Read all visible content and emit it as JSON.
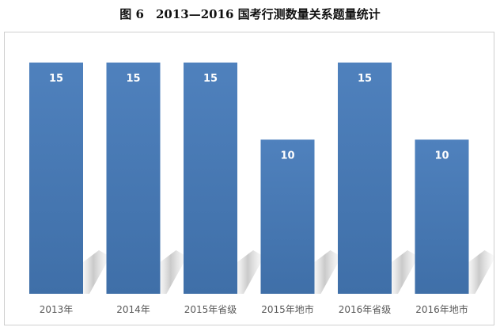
{
  "chart_data": {
    "type": "bar",
    "title": "图 6　2013—2016 国考行测数量关系题量统计",
    "categories": [
      "2013年",
      "2014年",
      "2015年省级",
      "2015年地市",
      "2016年省级",
      "2016年地市"
    ],
    "values": [
      15,
      15,
      15,
      10,
      15,
      10
    ],
    "xlabel": "",
    "ylabel": "",
    "ylim": [
      0,
      15
    ],
    "grid": false,
    "legend": "none",
    "bar_color_top": "#4f81bd",
    "bar_color_bottom": "#3f6fa8",
    "label_color": "#ffffff"
  }
}
